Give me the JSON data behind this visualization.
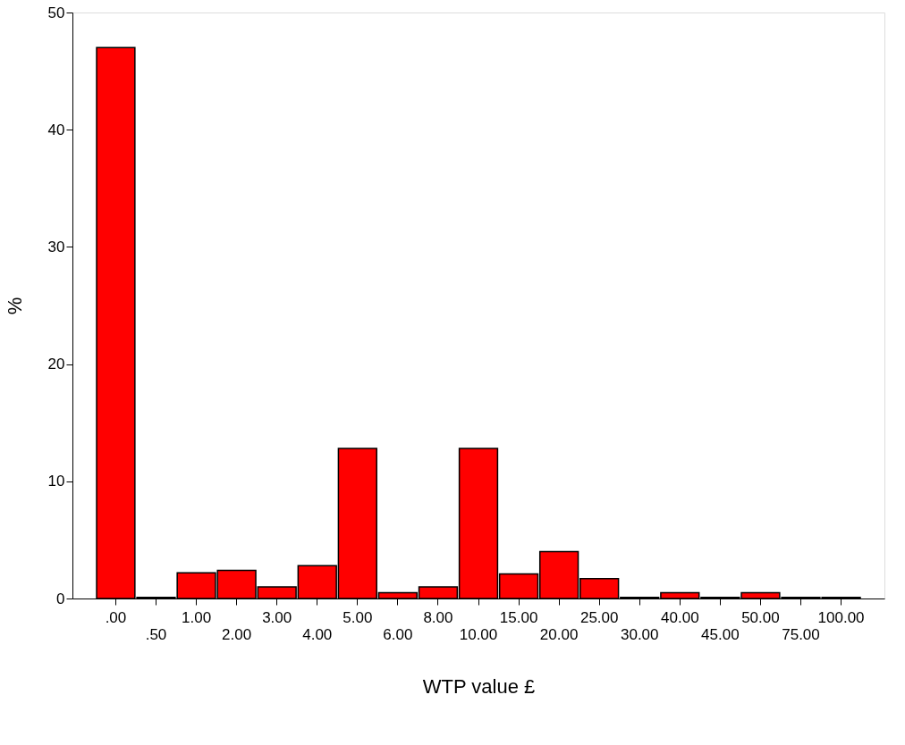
{
  "chart_data": {
    "type": "bar",
    "xlabel": "WTP value £",
    "ylabel": "%",
    "categories": [
      ".00",
      ".50",
      "1.00",
      "2.00",
      "3.00",
      "4.00",
      "5.00",
      "6.00",
      "8.00",
      "10.00",
      "15.00",
      "20.00",
      "25.00",
      "30.00",
      "40.00",
      "45.00",
      "50.00",
      "75.00",
      "100.00"
    ],
    "values": [
      47,
      0.1,
      2.2,
      2.4,
      1.0,
      2.8,
      12.8,
      0.5,
      1.0,
      12.8,
      2.1,
      4.0,
      1.7,
      0.1,
      0.5,
      0.1,
      0.5,
      0.1,
      0.1
    ],
    "color": "#ff0000",
    "ylim": [
      0,
      50
    ],
    "yticks": [
      0,
      10,
      20,
      30,
      40,
      50
    ],
    "grid": false
  }
}
